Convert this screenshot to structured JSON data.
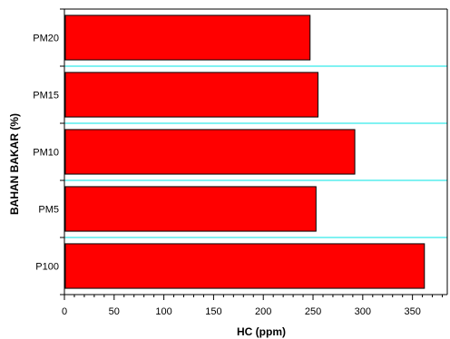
{
  "chart_data": {
    "type": "bar",
    "orientation": "horizontal",
    "xlabel": "HC (ppm)",
    "ylabel": "BAHAN BAKAR (%)",
    "categories": [
      "P100",
      "PM5",
      "PM10",
      "PM15",
      "PM20"
    ],
    "values": [
      362,
      253,
      292,
      255,
      247
    ],
    "xlim": [
      0,
      385
    ],
    "xticks": [
      "0",
      "50",
      "100",
      "150",
      "200",
      "250",
      "300",
      "350"
    ],
    "bar_color": "#ff0000",
    "gridline_color": "#00e5e5",
    "grid": "horizontal separators between categories",
    "legend": "none"
  }
}
